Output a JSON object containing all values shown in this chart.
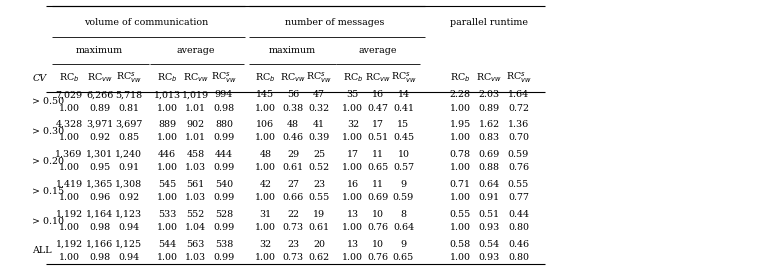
{
  "row_labels": [
    "> 0.50",
    "> 0.30",
    "> 0.20",
    "> 0.15",
    "> 0.10",
    "ALL"
  ],
  "rows": [
    [
      [
        "7,029",
        "6,266",
        "5,718"
      ],
      [
        "1,013",
        "1,019",
        "994"
      ],
      [
        "145",
        "56",
        "47"
      ],
      [
        "35",
        "16",
        "14"
      ],
      [
        "2.28",
        "2.03",
        "1.64"
      ]
    ],
    [
      [
        "1.00",
        "0.89",
        "0.81"
      ],
      [
        "1.00",
        "1.01",
        "0.98"
      ],
      [
        "1.00",
        "0.38",
        "0.32"
      ],
      [
        "1.00",
        "0.47",
        "0.41"
      ],
      [
        "1.00",
        "0.89",
        "0.72"
      ]
    ],
    [
      [
        "4,328",
        "3,971",
        "3,697"
      ],
      [
        "889",
        "902",
        "880"
      ],
      [
        "106",
        "48",
        "41"
      ],
      [
        "32",
        "17",
        "15"
      ],
      [
        "1.95",
        "1.62",
        "1.36"
      ]
    ],
    [
      [
        "1.00",
        "0.92",
        "0.85"
      ],
      [
        "1.00",
        "1.01",
        "0.99"
      ],
      [
        "1.00",
        "0.46",
        "0.39"
      ],
      [
        "1.00",
        "0.51",
        "0.45"
      ],
      [
        "1.00",
        "0.83",
        "0.70"
      ]
    ],
    [
      [
        "1,369",
        "1,301",
        "1,240"
      ],
      [
        "446",
        "458",
        "444"
      ],
      [
        "48",
        "29",
        "25"
      ],
      [
        "17",
        "11",
        "10"
      ],
      [
        "0.78",
        "0.69",
        "0.59"
      ]
    ],
    [
      [
        "1.00",
        "0.95",
        "0.91"
      ],
      [
        "1.00",
        "1.03",
        "0.99"
      ],
      [
        "1.00",
        "0.61",
        "0.52"
      ],
      [
        "1.00",
        "0.65",
        "0.57"
      ],
      [
        "1.00",
        "0.88",
        "0.76"
      ]
    ],
    [
      [
        "1,419",
        "1,365",
        "1,308"
      ],
      [
        "545",
        "561",
        "540"
      ],
      [
        "42",
        "27",
        "23"
      ],
      [
        "16",
        "11",
        "9"
      ],
      [
        "0.71",
        "0.64",
        "0.55"
      ]
    ],
    [
      [
        "1.00",
        "0.96",
        "0.92"
      ],
      [
        "1.00",
        "1.03",
        "0.99"
      ],
      [
        "1.00",
        "0.66",
        "0.55"
      ],
      [
        "1.00",
        "0.69",
        "0.59"
      ],
      [
        "1.00",
        "0.91",
        "0.77"
      ]
    ],
    [
      [
        "1,192",
        "1,164",
        "1,123"
      ],
      [
        "533",
        "552",
        "528"
      ],
      [
        "31",
        "22",
        "19"
      ],
      [
        "13",
        "10",
        "8"
      ],
      [
        "0.55",
        "0.51",
        "0.44"
      ]
    ],
    [
      [
        "1.00",
        "0.98",
        "0.94"
      ],
      [
        "1.00",
        "1.04",
        "0.99"
      ],
      [
        "1.00",
        "0.73",
        "0.61"
      ],
      [
        "1.00",
        "0.76",
        "0.64"
      ],
      [
        "1.00",
        "0.93",
        "0.80"
      ]
    ],
    [
      [
        "1,192",
        "1,166",
        "1,125"
      ],
      [
        "544",
        "563",
        "538"
      ],
      [
        "32",
        "23",
        "20"
      ],
      [
        "13",
        "10",
        "9"
      ],
      [
        "0.58",
        "0.54",
        "0.46"
      ]
    ],
    [
      [
        "1.00",
        "0.98",
        "0.94"
      ],
      [
        "1.00",
        "1.03",
        "0.99"
      ],
      [
        "1.00",
        "0.73",
        "0.62"
      ],
      [
        "1.00",
        "0.76",
        "0.65"
      ],
      [
        "1.00",
        "0.93",
        "0.80"
      ]
    ]
  ],
  "bg_color": "#ffffff",
  "text_color": "#000000",
  "font_size": 6.8
}
